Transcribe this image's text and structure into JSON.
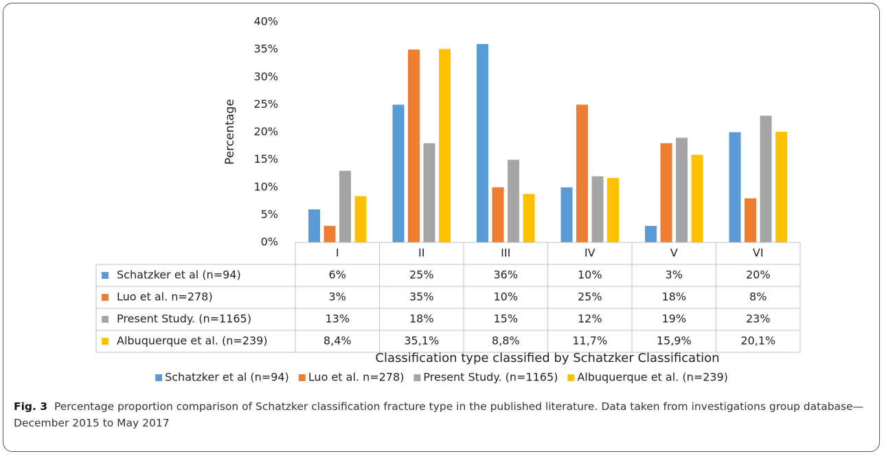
{
  "chart_data": {
    "type": "bar",
    "y_label": "Percentage",
    "x_label": "Classification type classified by Schatzker Classification",
    "categories": [
      "I",
      "II",
      "III",
      "IV",
      "V",
      "VI"
    ],
    "ylim": [
      0,
      40
    ],
    "yticks": [
      {
        "value": 0,
        "label": "0%"
      },
      {
        "value": 5,
        "label": "5%"
      },
      {
        "value": 10,
        "label": "10%"
      },
      {
        "value": 15,
        "label": "15%"
      },
      {
        "value": 20,
        "label": "20%"
      },
      {
        "value": 25,
        "label": "25%"
      },
      {
        "value": 30,
        "label": "30%"
      },
      {
        "value": 35,
        "label": "35%"
      },
      {
        "value": 40,
        "label": "40%"
      }
    ],
    "series": [
      {
        "name": "Schatzker et al (n=94)",
        "color": "#5b9bd5",
        "values": [
          6,
          25,
          36,
          10,
          3,
          20
        ],
        "value_labels": [
          "6%",
          "25%",
          "36%",
          "10%",
          "3%",
          "20%"
        ]
      },
      {
        "name": "Luo et al.  n=278)",
        "color": "#ed7d31",
        "values": [
          3,
          35,
          10,
          25,
          18,
          8
        ],
        "value_labels": [
          "3%",
          "35%",
          "10%",
          "25%",
          "18%",
          "8%"
        ]
      },
      {
        "name": "Present Study. (n=1165)",
        "color": "#a5a5a5",
        "values": [
          13,
          18,
          15,
          12,
          19,
          23
        ],
        "value_labels": [
          "13%",
          "18%",
          "15%",
          "12%",
          "19%",
          "23%"
        ]
      },
      {
        "name": "Albuquerque et al.   (n=239)",
        "color": "#ffc000",
        "values": [
          8.4,
          35.1,
          8.8,
          11.7,
          15.9,
          20.1
        ],
        "value_labels": [
          "8,4%",
          "35,1%",
          "8,8%",
          "11,7%",
          "15,9%",
          "20,1%"
        ]
      }
    ],
    "legend": "bottom",
    "grid": false
  },
  "caption_label": "Fig. 3",
  "caption": "Percentage proportion comparison of Schatzker classification fracture type in the published literature. Data taken from investigations group database—December 2015 to May 2017"
}
